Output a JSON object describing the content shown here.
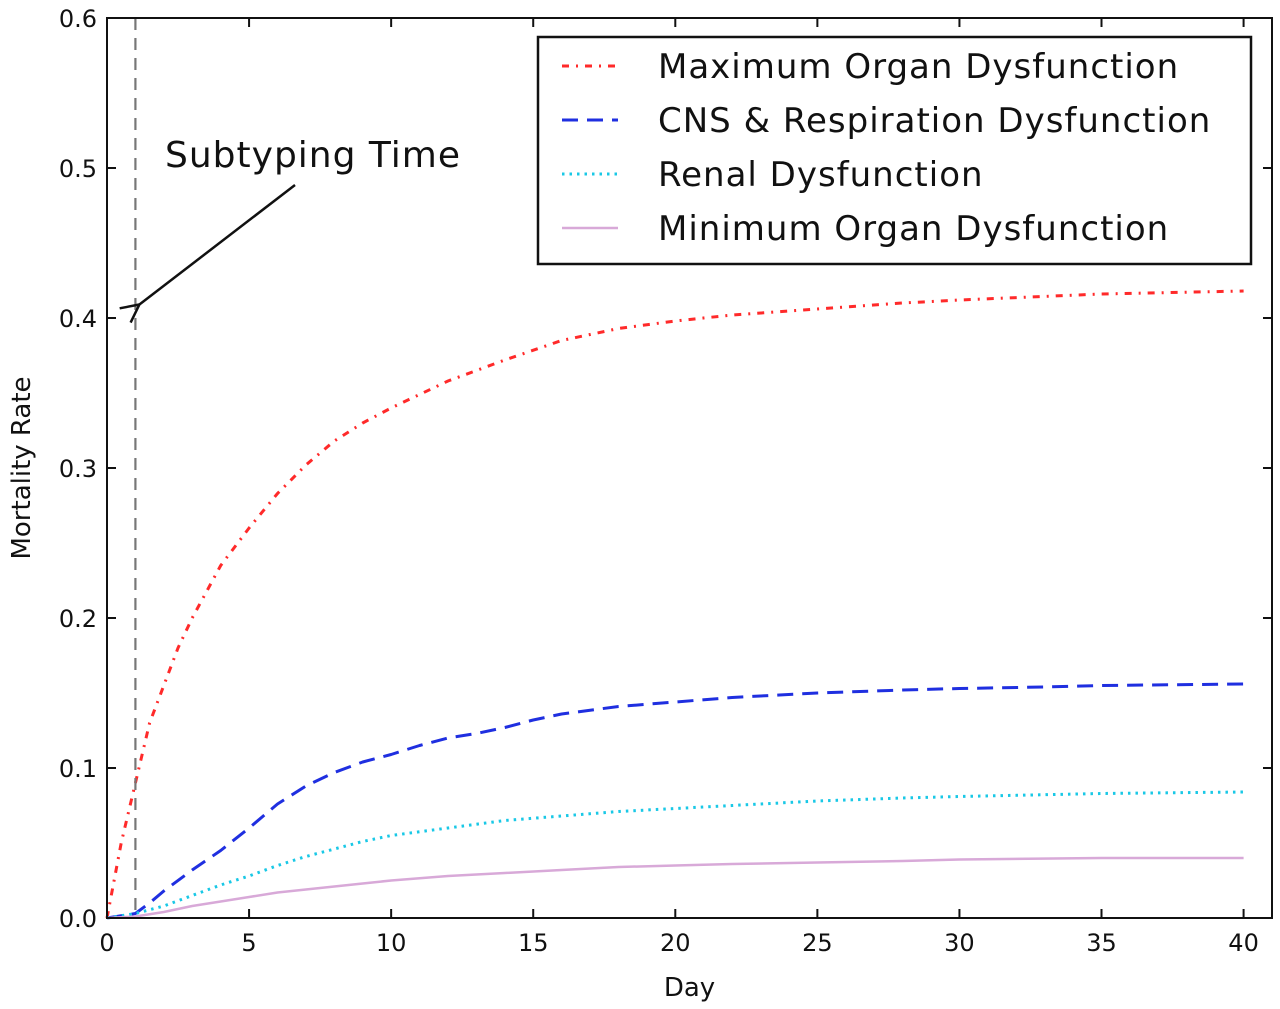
{
  "chart_data": {
    "type": "line",
    "xlabel": "Day",
    "ylabel": "Mortality Rate",
    "xlim": [
      0,
      41
    ],
    "ylim": [
      0,
      0.6
    ],
    "xticks": [
      0,
      5,
      10,
      15,
      20,
      25,
      30,
      35,
      40
    ],
    "xtick_labels": [
      "0",
      "5",
      "10",
      "15",
      "20",
      "25",
      "30",
      "35",
      "40"
    ],
    "yticks": [
      0.0,
      0.1,
      0.2,
      0.3,
      0.4,
      0.5,
      0.6
    ],
    "ytick_labels": [
      "0.0",
      "0.1",
      "0.2",
      "0.3",
      "0.4",
      "0.5",
      "0.6"
    ],
    "grid": false,
    "legend_position": "top-right",
    "series": [
      {
        "name": "Maximum Organ Dysfunction",
        "color": "#ff2a2a",
        "dash": "dash-dot",
        "x": [
          0,
          0.5,
          1,
          1.5,
          2,
          2.5,
          3,
          4,
          5,
          6,
          7,
          8,
          9,
          10,
          12,
          14,
          16,
          18,
          20,
          22,
          25,
          28,
          30,
          35,
          40
        ],
        "y": [
          0.0,
          0.05,
          0.09,
          0.13,
          0.155,
          0.18,
          0.2,
          0.235,
          0.26,
          0.283,
          0.302,
          0.318,
          0.33,
          0.34,
          0.358,
          0.372,
          0.385,
          0.393,
          0.398,
          0.402,
          0.406,
          0.41,
          0.412,
          0.416,
          0.418
        ]
      },
      {
        "name": "CNS & Respiration Dysfunction",
        "color": "#1f2fe0",
        "dash": "dashed",
        "x": [
          0,
          1,
          1.5,
          2,
          3,
          4,
          5,
          6,
          7,
          8,
          9,
          10,
          11,
          12,
          13,
          14,
          15,
          16,
          18,
          20,
          22,
          25,
          28,
          30,
          33,
          35,
          40
        ],
        "y": [
          0.0,
          0.003,
          0.01,
          0.018,
          0.032,
          0.045,
          0.06,
          0.076,
          0.088,
          0.097,
          0.104,
          0.109,
          0.115,
          0.12,
          0.123,
          0.127,
          0.132,
          0.136,
          0.141,
          0.144,
          0.147,
          0.15,
          0.152,
          0.153,
          0.154,
          0.155,
          0.156
        ]
      },
      {
        "name": "Renal Dysfunction",
        "color": "#19c8e6",
        "dash": "dotted",
        "x": [
          0,
          1,
          2,
          3,
          4,
          5,
          6,
          7,
          8,
          9,
          10,
          12,
          14,
          16,
          18,
          20,
          22,
          25,
          28,
          30,
          35,
          40
        ],
        "y": [
          0.0,
          0.003,
          0.008,
          0.015,
          0.022,
          0.028,
          0.035,
          0.041,
          0.046,
          0.051,
          0.055,
          0.06,
          0.065,
          0.068,
          0.071,
          0.073,
          0.075,
          0.078,
          0.08,
          0.081,
          0.083,
          0.084
        ]
      },
      {
        "name": "Minimum Organ Dysfunction",
        "color": "#d8a9d8",
        "dash": "solid",
        "x": [
          0,
          1,
          2,
          3,
          4,
          5,
          6,
          7,
          8,
          9,
          10,
          12,
          14,
          16,
          18,
          20,
          22,
          25,
          28,
          30,
          35,
          40
        ],
        "y": [
          0.0,
          0.001,
          0.004,
          0.008,
          0.011,
          0.014,
          0.017,
          0.019,
          0.021,
          0.023,
          0.025,
          0.028,
          0.03,
          0.032,
          0.034,
          0.035,
          0.036,
          0.037,
          0.038,
          0.039,
          0.04,
          0.04
        ]
      }
    ],
    "annotations": [
      {
        "text": "Subtyping Time",
        "vline_x": 1,
        "arrow_target": [
          1,
          0.405
        ],
        "vline_color": "#777777"
      }
    ]
  }
}
